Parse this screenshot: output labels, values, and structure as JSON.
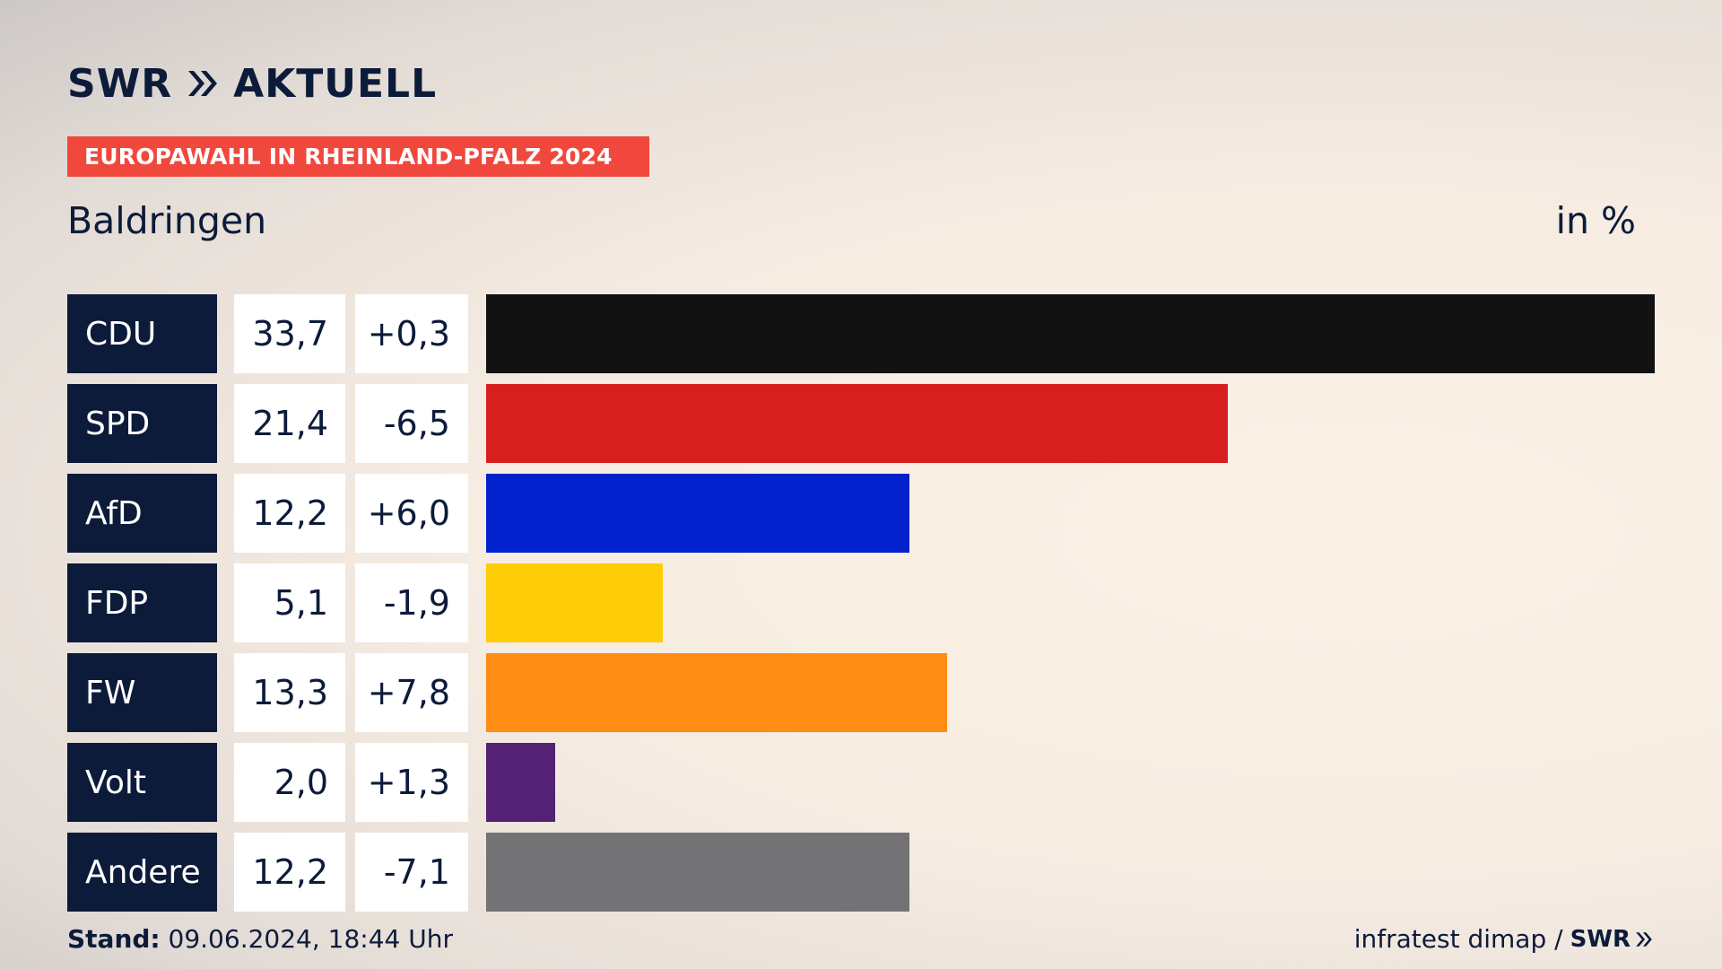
{
  "header": {
    "logo_text": "SWR",
    "logo_sub": "AKTUELL",
    "badge": "EUROPAWAHL IN RHEINLAND-PFALZ 2024",
    "location": "Baldringen",
    "unit": "in %"
  },
  "chart_data": {
    "type": "bar",
    "orientation": "horizontal",
    "categories": [
      "CDU",
      "SPD",
      "AfD",
      "FDP",
      "FW",
      "Volt",
      "Andere"
    ],
    "values": [
      33.7,
      21.4,
      12.2,
      5.1,
      13.3,
      2.0,
      12.2
    ],
    "value_labels": [
      "33,7",
      "21,4",
      "12,2",
      "5,1",
      "13,3",
      "2,0",
      "12,2"
    ],
    "change_labels": [
      "+0,3",
      "-6,5",
      "+6,0",
      "-1,9",
      "+7,8",
      "+1,3",
      "-7,1"
    ],
    "colors": [
      "#121212",
      "#d81f1f",
      "#0021cc",
      "#ffcc08",
      "#ff8c14",
      "#532274",
      "#737375"
    ],
    "xlim": [
      0,
      33.7
    ]
  },
  "footer": {
    "stand_label": "Stand:",
    "stand_value": "09.06.2024, 18:44 Uhr",
    "source": "infratest dimap /",
    "source_logo": "SWR"
  }
}
